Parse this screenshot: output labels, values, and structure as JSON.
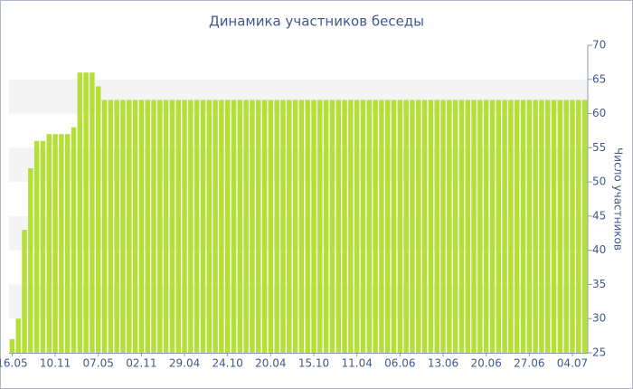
{
  "chart_data": {
    "type": "bar",
    "title": "Динамика участников беседы",
    "y_label": "Число участников",
    "y_axis_side": "right",
    "color": "#b4df37",
    "grid": true,
    "ylim": [
      25,
      70
    ],
    "yticks": [
      25,
      30,
      35,
      40,
      45,
      50,
      55,
      60,
      65,
      70
    ],
    "categories": [
      "16.05",
      null,
      null,
      null,
      null,
      null,
      null,
      "10.11",
      null,
      null,
      null,
      null,
      null,
      null,
      "07.05",
      null,
      null,
      null,
      null,
      null,
      null,
      "02.11",
      null,
      null,
      null,
      null,
      null,
      null,
      "29.04",
      null,
      null,
      null,
      null,
      null,
      null,
      "24.10",
      null,
      null,
      null,
      null,
      null,
      null,
      "20.04",
      null,
      null,
      null,
      null,
      null,
      null,
      "15.10",
      null,
      null,
      null,
      null,
      null,
      null,
      "11.04",
      null,
      null,
      null,
      null,
      null,
      null,
      "06.06",
      null,
      null,
      null,
      null,
      null,
      null,
      "13.06",
      null,
      null,
      null,
      null,
      null,
      null,
      "20.06",
      null,
      null,
      null,
      null,
      null,
      null,
      "27.06",
      null,
      null,
      null,
      null,
      null,
      null,
      "04.07",
      null,
      null
    ],
    "values": [
      27,
      30,
      43,
      52,
      56,
      56,
      57,
      57,
      57,
      57,
      58,
      66,
      66,
      66,
      64,
      62,
      62,
      62,
      62,
      62,
      62,
      62,
      62,
      62,
      62,
      62,
      62,
      62,
      62,
      62,
      62,
      62,
      62,
      62,
      62,
      62,
      62,
      62,
      62,
      62,
      62,
      62,
      62,
      62,
      62,
      62,
      62,
      62,
      62,
      62,
      62,
      62,
      62,
      62,
      62,
      62,
      62,
      62,
      62,
      62,
      62,
      62,
      62,
      62,
      62,
      62,
      62,
      62,
      62,
      62,
      62,
      62,
      62,
      62,
      62,
      62,
      62,
      62,
      62,
      62,
      62,
      62,
      62,
      62,
      62,
      62,
      62,
      62,
      62,
      62,
      62,
      62,
      62,
      62
    ]
  }
}
